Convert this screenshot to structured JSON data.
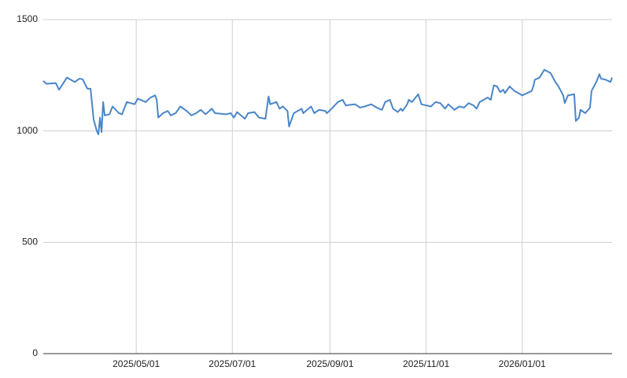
{
  "chart_data": {
    "type": "line",
    "x": [
      "2025/03/03",
      "2025/03/05",
      "2025/03/11",
      "2025/03/13",
      "2025/03/18",
      "2025/03/23",
      "2025/03/26",
      "2025/03/28",
      "2025/03/31",
      "2025/04/02",
      "2025/04/04",
      "2025/04/06",
      "2025/04/07",
      "2025/04/08",
      "2025/04/09",
      "2025/04/10",
      "2025/04/11",
      "2025/04/14",
      "2025/04/16",
      "2025/04/20",
      "2025/04/22",
      "2025/04/25",
      "2025/04/30",
      "2025/05/02",
      "2025/05/07",
      "2025/05/10",
      "2025/05/13",
      "2025/05/14",
      "2025/05/15",
      "2025/05/18",
      "2025/05/21",
      "2025/05/23",
      "2025/05/26",
      "2025/05/29",
      "2025/06/02",
      "2025/06/05",
      "2025/06/08",
      "2025/06/11",
      "2025/06/14",
      "2025/06/18",
      "2025/06/20",
      "2025/06/27",
      "2025/06/30",
      "2025/07/02",
      "2025/07/04",
      "2025/07/09",
      "2025/07/11",
      "2025/07/15",
      "2025/07/18",
      "2025/07/22",
      "2025/07/24",
      "2025/07/25",
      "2025/07/29",
      "2025/07/31",
      "2025/08/02",
      "2025/08/05",
      "2025/08/06",
      "2025/08/08",
      "2025/08/09",
      "2025/08/14",
      "2025/08/15",
      "2025/08/20",
      "2025/08/22",
      "2025/08/25",
      "2025/08/29",
      "2025/08/30",
      "2025/09/02",
      "2025/09/06",
      "2025/09/09",
      "2025/09/11",
      "2025/09/17",
      "2025/09/20",
      "2025/09/23",
      "2025/09/27",
      "2025/10/02",
      "2025/10/04",
      "2025/10/06",
      "2025/10/09",
      "2025/10/11",
      "2025/10/14",
      "2025/10/16",
      "2025/10/17",
      "2025/10/20",
      "2025/10/21",
      "2025/10/23",
      "2025/10/27",
      "2025/10/29",
      "2025/11/01",
      "2025/11/04",
      "2025/11/07",
      "2025/11/10",
      "2025/11/13",
      "2025/11/15",
      "2025/11/19",
      "2025/11/22",
      "2025/11/25",
      "2025/11/28",
      "2025/12/01",
      "2025/12/03",
      "2025/12/05",
      "2025/12/10",
      "2025/12/12",
      "2025/12/14",
      "2025/12/16",
      "2025/12/18",
      "2025/12/20",
      "2025/12/21",
      "2025/12/24",
      "2025/12/27",
      "2026/01/01",
      "2026/01/07",
      "2026/01/08",
      "2026/01/09",
      "2026/01/12",
      "2026/01/15",
      "2026/01/19",
      "2026/01/22",
      "2026/01/24",
      "2026/01/27",
      "2026/01/28",
      "2026/01/30",
      "2026/02/03",
      "2026/02/04",
      "2026/02/06",
      "2026/02/07",
      "2026/02/10",
      "2026/02/13",
      "2026/02/14",
      "2026/02/17",
      "2026/02/19",
      "2026/02/20",
      "2026/02/23",
      "2026/02/26",
      "2026/02/27"
    ],
    "series": [
      {
        "color": "#4a86c8",
        "values": [
          1225,
          1212,
          1215,
          1185,
          1240,
          1220,
          1235,
          1232,
          1190,
          1190,
          1050,
          1000,
          985,
          1060,
          995,
          1130,
          1070,
          1075,
          1110,
          1080,
          1075,
          1130,
          1120,
          1145,
          1130,
          1150,
          1160,
          1140,
          1060,
          1080,
          1090,
          1070,
          1080,
          1110,
          1090,
          1070,
          1080,
          1095,
          1075,
          1100,
          1080,
          1075,
          1080,
          1060,
          1085,
          1055,
          1080,
          1085,
          1060,
          1055,
          1155,
          1120,
          1130,
          1100,
          1110,
          1090,
          1020,
          1060,
          1080,
          1100,
          1080,
          1110,
          1080,
          1095,
          1090,
          1080,
          1100,
          1130,
          1140,
          1115,
          1120,
          1105,
          1110,
          1120,
          1100,
          1095,
          1130,
          1140,
          1100,
          1085,
          1100,
          1090,
          1120,
          1140,
          1130,
          1165,
          1120,
          1115,
          1110,
          1130,
          1125,
          1100,
          1120,
          1095,
          1110,
          1105,
          1125,
          1115,
          1100,
          1130,
          1150,
          1140,
          1205,
          1200,
          1175,
          1185,
          1170,
          1200,
          1180,
          1160,
          1180,
          1200,
          1230,
          1240,
          1275,
          1260,
          1220,
          1200,
          1160,
          1125,
          1160,
          1165,
          1045,
          1060,
          1095,
          1080,
          1105,
          1180,
          1220,
          1255,
          1235,
          1230,
          1220,
          1240
        ]
      }
    ],
    "xlim": [
      "2025/03/03",
      "2026/02/27"
    ],
    "xticks": [
      "2025/05/01",
      "2025/07/01",
      "2025/09/01",
      "2025/11/01",
      "2026/01/01"
    ],
    "ylim": [
      0,
      1500
    ],
    "yticks": [
      0,
      500,
      1000,
      1500
    ],
    "grid": true
  }
}
